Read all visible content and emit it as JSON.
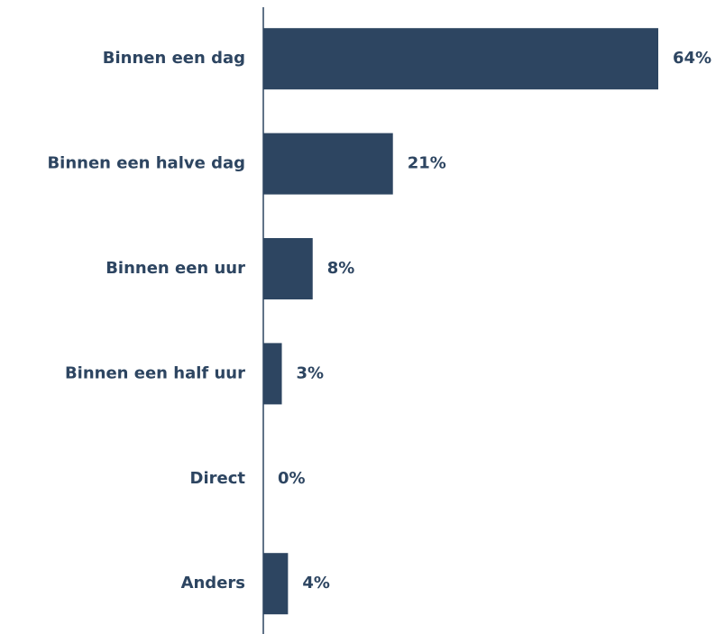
{
  "chart_data": {
    "type": "bar",
    "orientation": "horizontal",
    "categories": [
      "Binnen een dag",
      "Binnen een halve dag",
      "Binnen een uur",
      "Binnen een half uur",
      "Direct",
      "Anders"
    ],
    "values": [
      64,
      21,
      8,
      3,
      0,
      4
    ],
    "value_labels": [
      "64%",
      "21%",
      "8%",
      "3%",
      "0%",
      "4%"
    ],
    "color": "#2d4561"
  }
}
